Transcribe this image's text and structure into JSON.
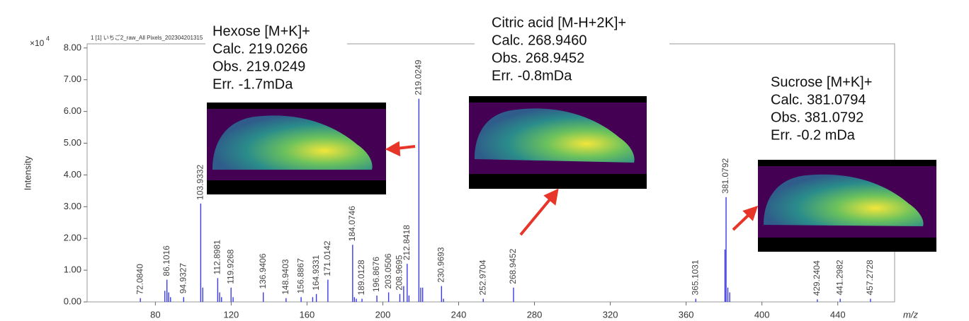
{
  "chart_data": {
    "type": "stem",
    "header": "1 [1] いちご2_raw_All Pixels_202304201315",
    "y_multiplier": {
      "base": "×10",
      "exponent": "4"
    },
    "ylabel": "Intensity",
    "xlabel": "m/z",
    "color": "#3a3ae8",
    "xlim": [
      44,
      470
    ],
    "ylim": [
      0,
      8.13
    ],
    "xticks": [
      80,
      120,
      160,
      200,
      240,
      280,
      320,
      360,
      400,
      440
    ],
    "yticks": [
      {
        "value": 0,
        "label": "0.00"
      },
      {
        "value": 1,
        "label": "1.00"
      },
      {
        "value": 2,
        "label": "2.00"
      },
      {
        "value": 3,
        "label": "3.00"
      },
      {
        "value": 4,
        "label": "4.00"
      },
      {
        "value": 5,
        "label": "5.00"
      },
      {
        "value": 6,
        "label": "6.00"
      },
      {
        "value": 7,
        "label": "7.00"
      },
      {
        "value": 8,
        "label": "8.00"
      }
    ],
    "x": [
      72.084,
      85.0,
      86.1016,
      87.0,
      88.0,
      94.9327,
      103.9332,
      105.0,
      112.8981,
      113.9,
      114.9,
      119.9268,
      121.0,
      136.9406,
      148.9403,
      156.8867,
      163.0,
      164.9331,
      171.0142,
      184.0746,
      185.0,
      186.0,
      189.0128,
      196.8676,
      203.0506,
      208.9695,
      211.0,
      212.8418,
      213.8,
      219.0249,
      220.0,
      221.0,
      230.9693,
      232.0,
      252.9704,
      268.9452,
      365.1031,
      380.5,
      381.0792,
      382.0,
      383.0,
      429.2404,
      441.2982,
      457.2728
    ],
    "values": [
      0.12,
      0.35,
      0.7,
      0.3,
      0.15,
      0.15,
      3.1,
      0.45,
      0.75,
      0.3,
      0.15,
      0.45,
      0.15,
      0.3,
      0.12,
      0.15,
      0.15,
      0.25,
      0.7,
      1.8,
      0.15,
      0.1,
      0.1,
      0.2,
      0.3,
      0.25,
      0.5,
      1.2,
      0.2,
      6.4,
      0.45,
      0.45,
      0.5,
      0.1,
      0.1,
      0.45,
      0.1,
      1.65,
      3.3,
      0.45,
      0.3,
      0.08,
      0.1,
      0.1
    ],
    "labels": [
      "72.0840",
      null,
      "86.1016",
      null,
      null,
      "94.9327",
      "103.9332",
      null,
      "112.8981",
      null,
      null,
      "119.9268",
      null,
      "136.9406",
      "148.9403",
      "156.8867",
      null,
      "164.9331",
      "171.0142",
      "184.0746",
      null,
      null,
      "189.0128",
      "196.8676",
      "203.0506",
      "208.9695",
      null,
      "212.8418",
      null,
      "219.0249",
      null,
      null,
      "230.9693",
      null,
      "252.9704",
      "268.9452",
      "365.1031",
      null,
      "381.0792",
      null,
      null,
      "429.2404",
      "441.2982",
      "457.2728"
    ],
    "annotations": [
      {
        "lines": [
          "Hexose [M+K]+",
          "Calc. 219.0266",
          "Obs. 219.0249",
          "Err. -1.7mDa"
        ]
      },
      {
        "lines": [
          "Citric acid [M-H+2K]+",
          "Calc. 268.9460",
          "Obs. 268.9452",
          "Err. -0.8mDa"
        ]
      },
      {
        "lines": [
          "Sucrose [M+K]+",
          "Calc. 381.0794",
          "Obs. 381.0792",
          "Err. -0.2 mDa"
        ]
      }
    ]
  }
}
